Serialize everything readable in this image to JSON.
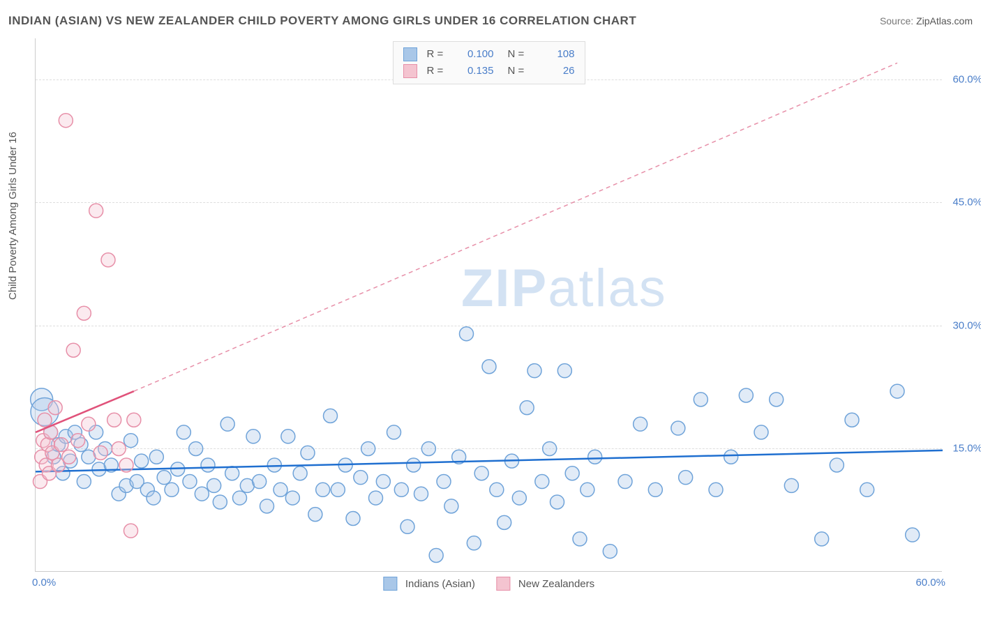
{
  "header": {
    "title": "INDIAN (ASIAN) VS NEW ZEALANDER CHILD POVERTY AMONG GIRLS UNDER 16 CORRELATION CHART",
    "source_prefix": "Source: ",
    "source_name": "ZipAtlas.com"
  },
  "watermark": {
    "part1": "ZIP",
    "part2": "atlas"
  },
  "chart": {
    "type": "scatter",
    "ylabel": "Child Poverty Among Girls Under 16",
    "xlim": [
      0,
      60
    ],
    "ylim": [
      0,
      65
    ],
    "yticks": [
      15,
      30,
      45,
      60
    ],
    "ytick_labels": [
      "15.0%",
      "30.0%",
      "45.0%",
      "60.0%"
    ],
    "xtick_min": "0.0%",
    "xtick_max": "60.0%",
    "background_color": "#ffffff",
    "grid_color": "#dddddd",
    "axis_color": "#cccccc",
    "tick_label_color": "#4a7ec9",
    "tick_label_fontsize": 15,
    "label_color": "#555555",
    "label_fontsize": 15,
    "marker_radius": 10,
    "marker_fill_opacity": 0.35,
    "marker_stroke_width": 1.5,
    "series": [
      {
        "name": "Indians (Asian)",
        "color_fill": "#a9c7e8",
        "color_stroke": "#6fa3d9",
        "R": "0.100",
        "N": "108",
        "trend": {
          "x1": 0,
          "y1": 12.2,
          "x2": 60,
          "y2": 14.8,
          "stroke": "#1f6fd0",
          "width": 2.5,
          "dash": "none"
        },
        "points": [
          [
            0.4,
            21,
            16
          ],
          [
            0.6,
            19.5,
            20
          ],
          [
            1,
            17,
            10
          ],
          [
            1.2,
            14,
            10
          ],
          [
            1.5,
            15.5,
            10
          ],
          [
            1.8,
            12,
            10
          ],
          [
            2,
            16.5,
            10
          ],
          [
            2.3,
            13.5,
            10
          ],
          [
            2.6,
            17,
            10
          ],
          [
            3,
            15.5,
            10
          ],
          [
            3.2,
            11,
            10
          ],
          [
            3.5,
            14,
            10
          ],
          [
            4,
            17,
            10
          ],
          [
            4.2,
            12.5,
            10
          ],
          [
            4.6,
            15,
            10
          ],
          [
            5,
            13,
            10
          ],
          [
            5.5,
            9.5,
            10
          ],
          [
            6,
            10.5,
            10
          ],
          [
            6.3,
            16,
            10
          ],
          [
            6.7,
            11,
            10
          ],
          [
            7,
            13.5,
            10
          ],
          [
            7.4,
            10,
            10
          ],
          [
            7.8,
            9,
            10
          ],
          [
            8,
            14,
            10
          ],
          [
            8.5,
            11.5,
            10
          ],
          [
            9,
            10,
            10
          ],
          [
            9.4,
            12.5,
            10
          ],
          [
            9.8,
            17,
            10
          ],
          [
            10.2,
            11,
            10
          ],
          [
            10.6,
            15,
            10
          ],
          [
            11,
            9.5,
            10
          ],
          [
            11.4,
            13,
            10
          ],
          [
            11.8,
            10.5,
            10
          ],
          [
            12.2,
            8.5,
            10
          ],
          [
            12.7,
            18,
            10
          ],
          [
            13,
            12,
            10
          ],
          [
            13.5,
            9,
            10
          ],
          [
            14,
            10.5,
            10
          ],
          [
            14.4,
            16.5,
            10
          ],
          [
            14.8,
            11,
            10
          ],
          [
            15.3,
            8,
            10
          ],
          [
            15.8,
            13,
            10
          ],
          [
            16.2,
            10,
            10
          ],
          [
            16.7,
            16.5,
            10
          ],
          [
            17,
            9,
            10
          ],
          [
            17.5,
            12,
            10
          ],
          [
            18,
            14.5,
            10
          ],
          [
            18.5,
            7,
            10
          ],
          [
            19,
            10,
            10
          ],
          [
            19.5,
            19,
            10
          ],
          [
            20,
            10,
            10
          ],
          [
            20.5,
            13,
            10
          ],
          [
            21,
            6.5,
            10
          ],
          [
            21.5,
            11.5,
            10
          ],
          [
            22,
            15,
            10
          ],
          [
            22.5,
            9,
            10
          ],
          [
            23,
            11,
            10
          ],
          [
            23.7,
            17,
            10
          ],
          [
            24.2,
            10,
            10
          ],
          [
            24.6,
            5.5,
            10
          ],
          [
            25,
            13,
            10
          ],
          [
            25.5,
            9.5,
            10
          ],
          [
            26,
            15,
            10
          ],
          [
            26.5,
            2,
            10
          ],
          [
            27,
            11,
            10
          ],
          [
            27.5,
            8,
            10
          ],
          [
            28,
            14,
            10
          ],
          [
            28.5,
            29,
            10
          ],
          [
            29,
            3.5,
            10
          ],
          [
            29.5,
            12,
            10
          ],
          [
            30,
            25,
            10
          ],
          [
            30.5,
            10,
            10
          ],
          [
            31,
            6,
            10
          ],
          [
            31.5,
            13.5,
            10
          ],
          [
            32,
            9,
            10
          ],
          [
            32.5,
            20,
            10
          ],
          [
            33,
            24.5,
            10
          ],
          [
            33.5,
            11,
            10
          ],
          [
            34,
            15,
            10
          ],
          [
            34.5,
            8.5,
            10
          ],
          [
            35,
            24.5,
            10
          ],
          [
            35.5,
            12,
            10
          ],
          [
            36,
            4,
            10
          ],
          [
            36.5,
            10,
            10
          ],
          [
            37,
            14,
            10
          ],
          [
            38,
            2.5,
            10
          ],
          [
            39,
            11,
            10
          ],
          [
            40,
            18,
            10
          ],
          [
            41,
            10,
            10
          ],
          [
            42.5,
            17.5,
            10
          ],
          [
            43,
            11.5,
            10
          ],
          [
            44,
            21,
            10
          ],
          [
            45,
            10,
            10
          ],
          [
            46,
            14,
            10
          ],
          [
            47,
            21.5,
            10
          ],
          [
            48,
            17,
            10
          ],
          [
            49,
            21,
            10
          ],
          [
            50,
            10.5,
            10
          ],
          [
            52,
            4,
            10
          ],
          [
            53,
            13,
            10
          ],
          [
            54,
            18.5,
            10
          ],
          [
            55,
            10,
            10
          ],
          [
            57,
            22,
            10
          ],
          [
            58,
            4.5,
            10
          ]
        ]
      },
      {
        "name": "New Zealanders",
        "color_fill": "#f4c4d0",
        "color_stroke": "#e78fa8",
        "R": "0.135",
        "N": "26",
        "trend": {
          "x1": 0,
          "y1": 17,
          "x2": 6.5,
          "y2": 22,
          "stroke": "#e0527a",
          "width": 2.5,
          "dash": "none"
        },
        "trend_dashed": {
          "x1": 6.5,
          "y1": 22,
          "x2": 57,
          "y2": 62,
          "stroke": "#e78fa8",
          "width": 1.5,
          "dash": "6,5"
        },
        "points": [
          [
            0.3,
            11,
            10
          ],
          [
            0.4,
            14,
            10
          ],
          [
            0.5,
            16,
            10
          ],
          [
            0.6,
            18.5,
            10
          ],
          [
            0.7,
            13,
            10
          ],
          [
            0.8,
            15.5,
            10
          ],
          [
            0.9,
            12,
            10
          ],
          [
            1.0,
            17,
            10
          ],
          [
            1.1,
            14.5,
            10
          ],
          [
            1.3,
            20,
            10
          ],
          [
            1.5,
            13,
            10
          ],
          [
            1.7,
            15.5,
            10
          ],
          [
            2,
            55,
            10
          ],
          [
            2.2,
            14,
            10
          ],
          [
            2.5,
            27,
            10
          ],
          [
            2.8,
            16,
            10
          ],
          [
            3.2,
            31.5,
            10
          ],
          [
            3.5,
            18,
            10
          ],
          [
            4,
            44,
            10
          ],
          [
            4.3,
            14.5,
            10
          ],
          [
            4.8,
            38,
            10
          ],
          [
            5.2,
            18.5,
            10
          ],
          [
            5.5,
            15,
            10
          ],
          [
            6,
            13,
            10
          ],
          [
            6.3,
            5,
            10
          ],
          [
            6.5,
            18.5,
            10
          ]
        ]
      }
    ],
    "stats_box": {
      "bg": "#fafafa",
      "border": "#dddddd"
    },
    "legend": {
      "position": "bottom-center"
    }
  }
}
